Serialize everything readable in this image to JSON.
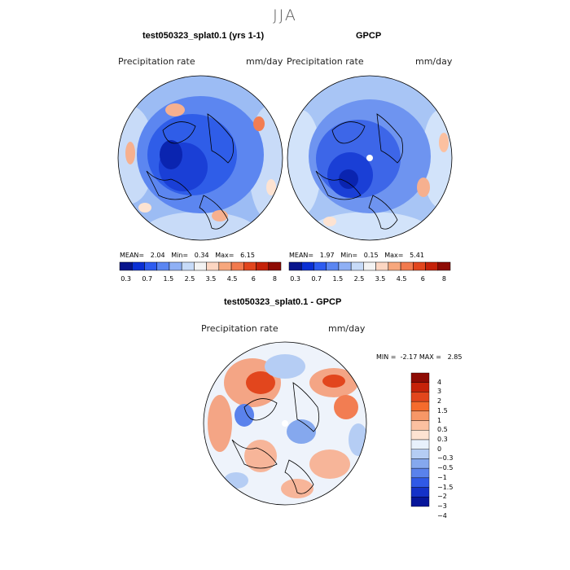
{
  "season": "JJA",
  "panels": [
    {
      "id": "model",
      "title": "test050323_splat0.1 (yrs 1-1)",
      "variable": "Precipitation rate",
      "units": "mm/day",
      "stats": {
        "mean_label": "MEAN=",
        "mean": "2.04",
        "min_label": "Min=",
        "min": "0.34",
        "max_label": "Max=",
        "max": "6.15"
      }
    },
    {
      "id": "obs",
      "title": "GPCP",
      "variable": "Precipitation rate",
      "units": "mm/day",
      "stats": {
        "mean_label": "MEAN=",
        "mean": "1.97",
        "min_label": "Min=",
        "min": "0.15",
        "max_label": "Max=",
        "max": "5.41"
      }
    },
    {
      "id": "diff",
      "title": "test050323_splat0.1 - GPCP",
      "variable": "Precipitation rate",
      "units": "mm/day",
      "stats": {
        "min_label": "MIN =",
        "min": "-2.17",
        "max_label": "MAX =",
        "max": "2.85"
      }
    }
  ],
  "colorbar_top": {
    "colors": [
      "#08148c",
      "#0a2fd4",
      "#2e5cf0",
      "#5b86f2",
      "#8fb0f5",
      "#c7dbf8",
      "#f3f3f3",
      "#fcd6c2",
      "#f7a77d",
      "#f17a4e",
      "#e2461d",
      "#c52209",
      "#8e0b04"
    ],
    "ticks": [
      "0.3",
      "0.7",
      "1.5",
      "2.5",
      "3.5",
      "4.5",
      "6",
      "8"
    ]
  },
  "colorbar_diff": {
    "colors": [
      "#8e0b04",
      "#c52209",
      "#e2461d",
      "#f56b2d",
      "#f79767",
      "#fbc0a0",
      "#fde3d2",
      "#e8f1fc",
      "#b5cdf4",
      "#85a8ee",
      "#5a82ec",
      "#3059e6",
      "#1532c8",
      "#07169a"
    ],
    "labels": [
      "4",
      "3",
      "2",
      "1.5",
      "1",
      "0.5",
      "0.3",
      "0",
      "−0.3",
      "−0.5",
      "−1",
      "−1.5",
      "−2",
      "−3",
      "−4"
    ]
  }
}
